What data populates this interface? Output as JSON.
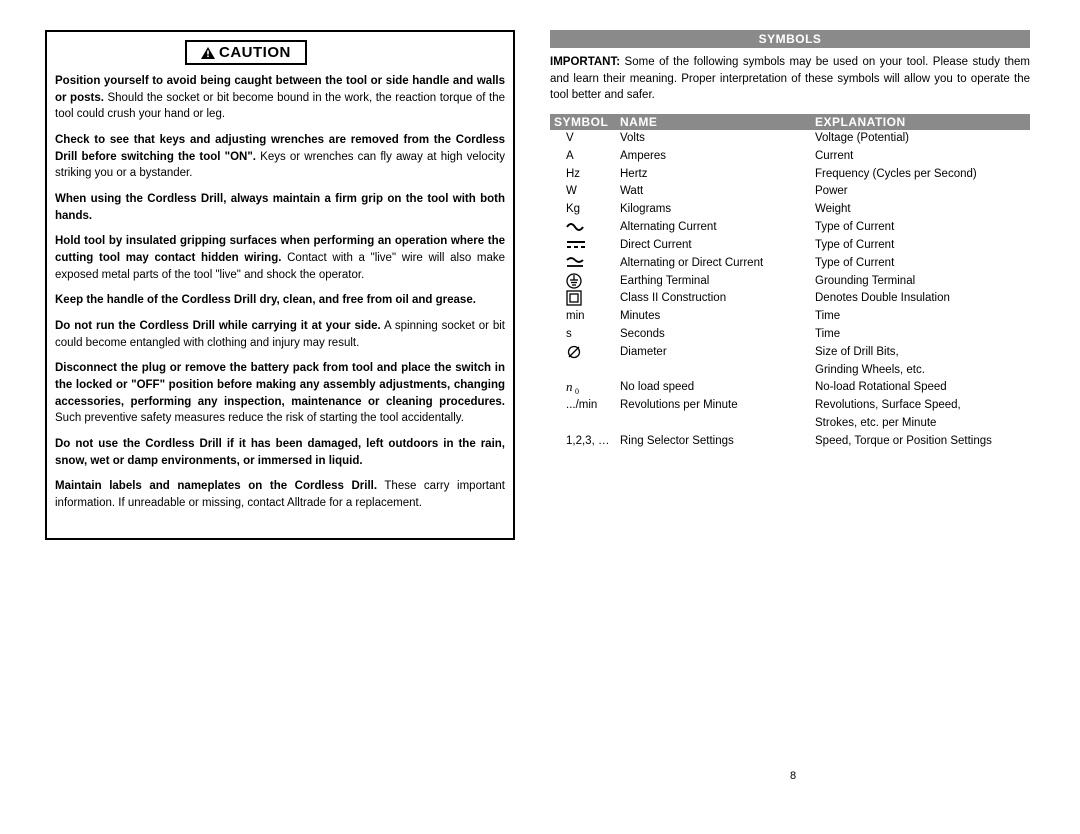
{
  "page_number": "8",
  "caution": {
    "header": "CAUTION",
    "paragraphs": [
      {
        "bold": "Position yourself to avoid being caught between the tool or side handle and walls or posts.",
        "rest": " Should the socket or bit become bound in the work, the reaction torque of the tool could crush your hand or leg."
      },
      {
        "bold": "Check to see that keys and adjusting wrenches are removed from the Cordless Drill before switching the tool \"ON\".",
        "rest": " Keys or wrenches can fly away at high velocity striking you or a bystander."
      },
      {
        "bold": "When using the Cordless Drill, always maintain a firm grip on the tool with both hands.",
        "rest": ""
      },
      {
        "bold": "Hold tool by insulated gripping surfaces when performing an operation where the cutting tool may contact hidden wiring.",
        "rest": " Contact with a \"live\" wire will also make exposed metal parts of the tool \"live\" and shock the operator."
      },
      {
        "bold": "Keep the handle of the Cordless Drill dry, clean, and free from oil and grease.",
        "rest": ""
      },
      {
        "bold": "Do not run the Cordless Drill while carrying it at your side.",
        "rest": " A spinning socket or bit could become entangled with clothing and injury may result."
      },
      {
        "bold": "Disconnect the plug or remove the battery pack from tool and place the switch in the locked or \"OFF\" position before making any assembly adjustments, changing accessories, performing any inspection, maintenance or cleaning procedures.",
        "rest": " Such preventive safety measures reduce the risk of starting the tool accidentally."
      },
      {
        "bold": "Do not use the Cordless Drill if it has been damaged, left outdoors in the rain, snow, wet or damp environments, or immersed in liquid.",
        "rest": ""
      },
      {
        "bold": "Maintain labels and nameplates on the Cordless Drill.",
        "rest": " These carry important information. If unreadable or missing, contact Alltrade for a replacement."
      }
    ]
  },
  "symbols_section": {
    "banner": "SYMBOLS",
    "intro_bold": "IMPORTANT:",
    "intro_text": " Some of the following symbols may be used on your tool. Please study them and learn their meaning. Proper interpretation of these symbols will allow you to operate the tool better and safer.",
    "headers": {
      "symbol": "SYMBOL",
      "name": "NAME",
      "explanation": "EXPLANATION"
    },
    "colors": {
      "banner_bg": "#8a8a8a",
      "banner_fg": "#ffffff"
    },
    "rows": [
      {
        "symbol": "V",
        "symbol_type": "text",
        "name": "Volts",
        "explanation": "Voltage (Potential)"
      },
      {
        "symbol": "A",
        "symbol_type": "text",
        "name": "Amperes",
        "explanation": "Current"
      },
      {
        "symbol": "Hz",
        "symbol_type": "text",
        "name": "Hertz",
        "explanation": "Frequency (Cycles per Second)"
      },
      {
        "symbol": "W",
        "symbol_type": "text",
        "name": "Watt",
        "explanation": "Power"
      },
      {
        "symbol": "Kg",
        "symbol_type": "text",
        "name": "Kilograms",
        "explanation": "Weight"
      },
      {
        "symbol": "ac",
        "symbol_type": "svg",
        "name": "Alternating Current",
        "explanation": "Type of Current"
      },
      {
        "symbol": "dc",
        "symbol_type": "svg",
        "name": "Direct Current",
        "explanation": "Type of Current"
      },
      {
        "symbol": "acdc",
        "symbol_type": "svg",
        "name": "Alternating or Direct Current",
        "explanation": "Type of Current"
      },
      {
        "symbol": "earth",
        "symbol_type": "svg",
        "name": "Earthing Terminal",
        "explanation": "Grounding Terminal"
      },
      {
        "symbol": "class2",
        "symbol_type": "svg",
        "name": "Class II Construction",
        "explanation": "Denotes Double Insulation"
      },
      {
        "symbol": "min",
        "symbol_type": "text",
        "name": "Minutes",
        "explanation": "Time"
      },
      {
        "symbol": "s",
        "symbol_type": "text",
        "name": "Seconds",
        "explanation": "Time"
      },
      {
        "symbol": "dia",
        "symbol_type": "svg",
        "name": "Diameter",
        "explanation": "Size of Drill Bits,\nGrinding Wheels, etc."
      },
      {
        "symbol": "n0",
        "symbol_type": "svg",
        "name": "No load speed",
        "explanation": "No-load Rotational Speed"
      },
      {
        "symbol": ".../min",
        "symbol_type": "text",
        "name": "Revolutions per Minute",
        "explanation": "Revolutions, Surface Speed,\nStrokes, etc. per Minute"
      },
      {
        "symbol": "1,2,3, …",
        "symbol_type": "text",
        "name": "Ring Selector Settings",
        "explanation": "Speed, Torque or Position Settings"
      }
    ]
  }
}
